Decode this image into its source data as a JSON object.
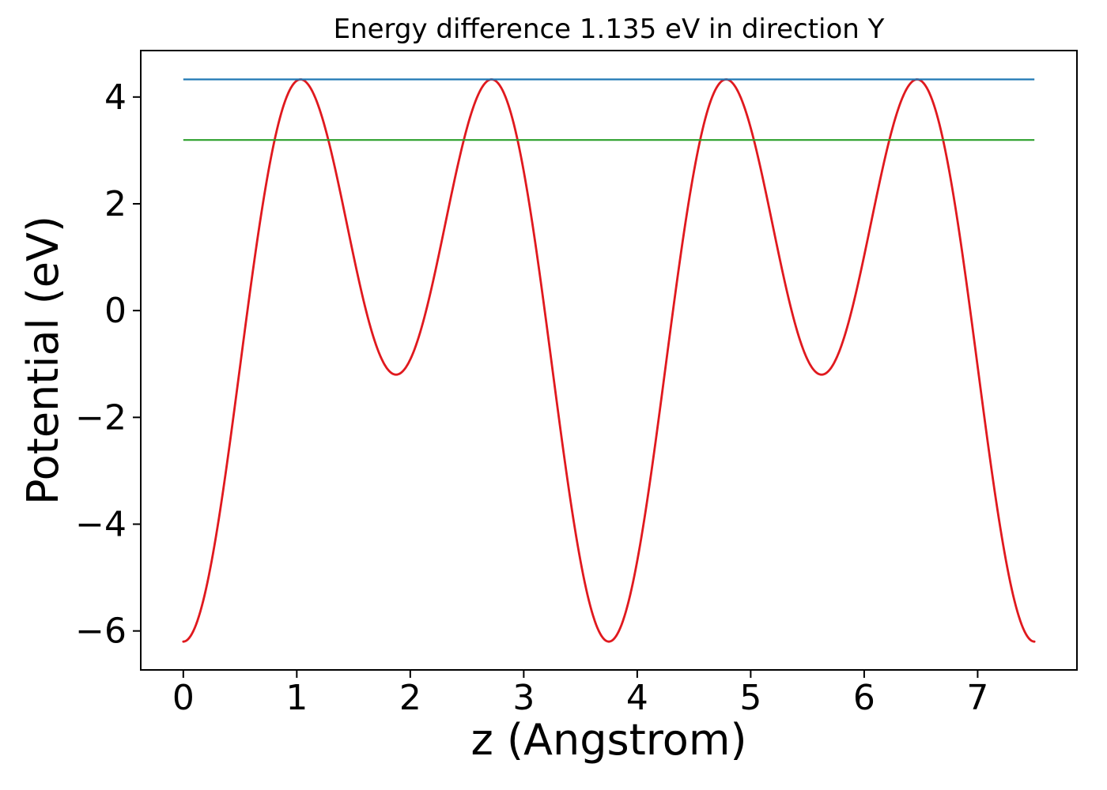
{
  "figure": {
    "background": "#ffffff",
    "text_color": "#000000",
    "spine_color": "#000000"
  },
  "chart_data": {
    "type": "line",
    "title": "Energy difference 1.135 eV in direction Y",
    "xlabel": "z (Angstrom)",
    "ylabel": "Potential (eV)",
    "xlim": [
      -0.375,
      7.875
    ],
    "ylim": [
      -6.73,
      4.87
    ],
    "xticks": [
      0,
      1,
      2,
      3,
      4,
      5,
      6,
      7
    ],
    "yticks": [
      -6,
      -4,
      -2,
      0,
      2,
      4
    ],
    "grid": false,
    "legend": "none",
    "energy_difference_eV": 1.135,
    "series": [
      {
        "name": "potential-curve",
        "type": "curve",
        "color": "#e0191e",
        "z_range": [
          0,
          7.5
        ],
        "period": 3.75,
        "samples": 600,
        "fourier": {
          "c0": 0.215,
          "c1": -2.5,
          "c2": -3.915
        },
        "feature_points": {
          "deep_minima": [
            [
              0,
              -6.2
            ],
            [
              3.75,
              -6.2
            ],
            [
              7.5,
              -6.2
            ]
          ],
          "shallow_minima": [
            [
              1.875,
              -1.2
            ],
            [
              5.625,
              -1.2
            ]
          ],
          "maxima": [
            [
              1.03,
              4.33
            ],
            [
              2.72,
              4.33
            ],
            [
              4.78,
              4.33
            ],
            [
              6.47,
              4.33
            ]
          ]
        }
      },
      {
        "name": "upper-energy-level-line",
        "type": "hline",
        "y": 4.33,
        "x_range": [
          0,
          7.5
        ],
        "color": "#1f77b4"
      },
      {
        "name": "lower-energy-level-line",
        "type": "hline",
        "y": 3.195,
        "x_range": [
          0,
          7.5
        ],
        "color": "#2ca02c"
      }
    ]
  }
}
